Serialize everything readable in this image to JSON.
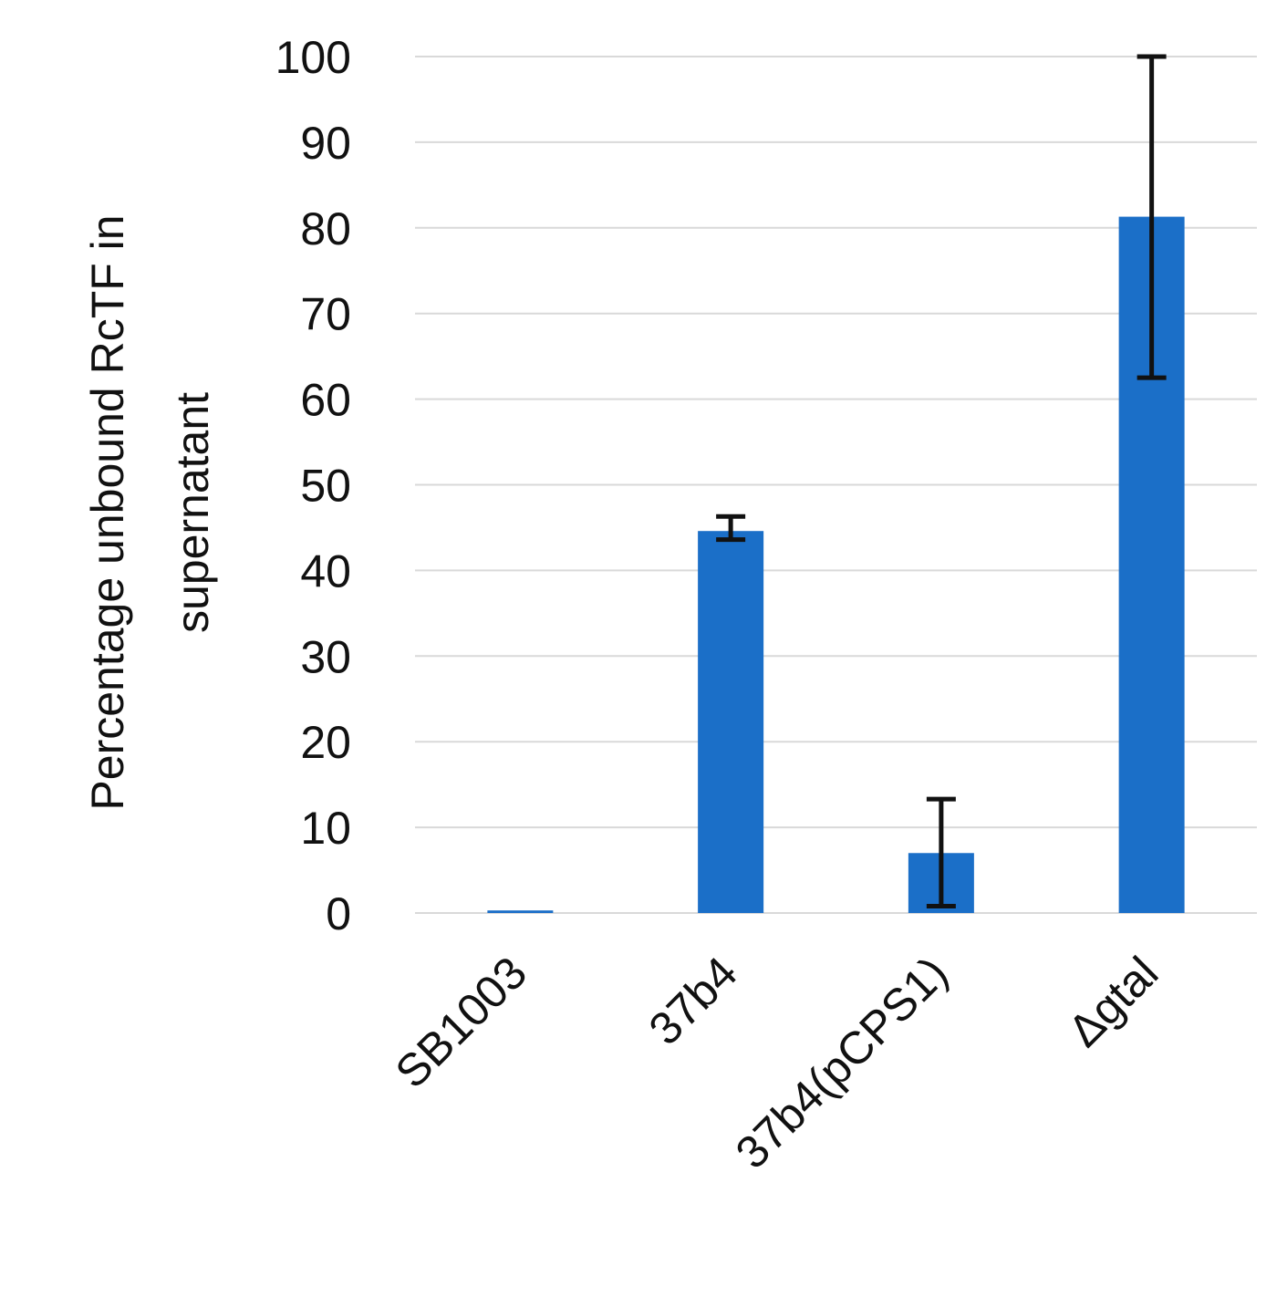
{
  "chart_data": {
    "type": "bar",
    "title": "",
    "xlabel": "",
    "ylabel_lines": [
      "Percentage unbound RcTF in",
      "supernatant"
    ],
    "categories": [
      "SB1003",
      "37b4",
      "37b4(pCPS1)",
      "Δgtal"
    ],
    "values": [
      0.3,
      44.6,
      7.0,
      81.3
    ],
    "error_low": [
      0.3,
      43.6,
      0.8,
      62.5
    ],
    "error_high": [
      0.3,
      46.3,
      13.3,
      100
    ],
    "ylim": [
      0,
      100
    ],
    "yticks": [
      "0",
      "10",
      "20",
      "30",
      "40",
      "50",
      "60",
      "70",
      "80",
      "90",
      "100"
    ],
    "grid": true,
    "legend": "none",
    "colors": {
      "bar": "#1b6fc8",
      "grid": "#d9d9d9",
      "error": "#111111",
      "text": "#111111"
    }
  }
}
